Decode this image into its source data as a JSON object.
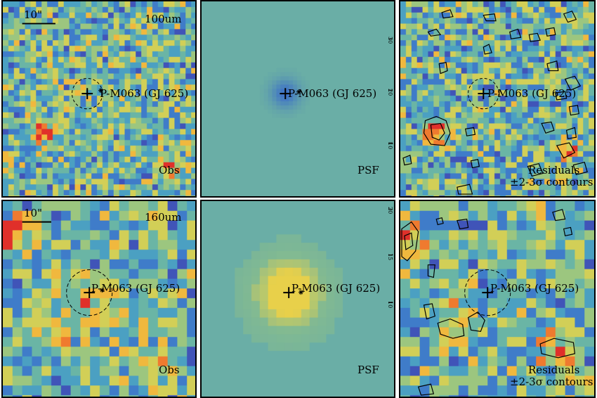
{
  "target_label": "P-M063 (GJ 625)",
  "scale_bar": "10\"",
  "rows": [
    {
      "band": "100um",
      "panels": [
        {
          "kind": "obs",
          "corner_label": "Obs",
          "band_label": "100um"
        },
        {
          "kind": "psf",
          "corner_label": "PSF",
          "tick_labels": [
            "30",
            "20",
            "10"
          ]
        },
        {
          "kind": "res",
          "corner_label_1": "Residuals",
          "corner_label_2": "±2-3σ contours"
        }
      ]
    },
    {
      "band": "160um",
      "panels": [
        {
          "kind": "obs",
          "corner_label": "Obs",
          "band_label": "160um"
        },
        {
          "kind": "psf",
          "corner_label": "PSF",
          "tick_labels": [
            "20",
            "15",
            "10"
          ]
        },
        {
          "kind": "res",
          "corner_label_1": "Residuals",
          "corner_label_2": "±2-3σ contours"
        }
      ]
    }
  ],
  "colormap": [
    "#3b2d8f",
    "#4054b8",
    "#3f7cc9",
    "#4ba0c2",
    "#6ab5a5",
    "#9cc67f",
    "#d2cf57",
    "#f0b83e",
    "#ef7a2f",
    "#e0302a"
  ]
}
